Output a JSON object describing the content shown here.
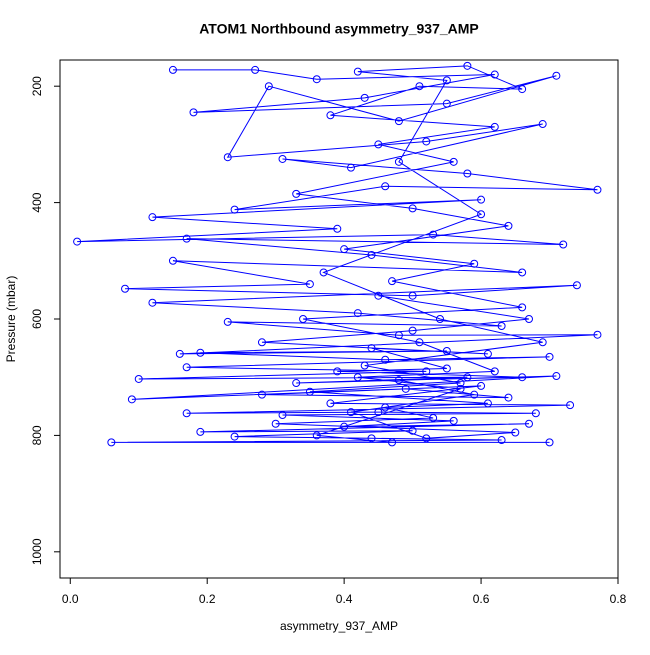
{
  "chart_data": {
    "type": "line",
    "title": "ATOM1 Northbound asymmetry_937_AMP",
    "x_label": "asymmetry_937_AMP",
    "y_label": "Pressure (mbar)",
    "color": "#0000ff",
    "markers": true,
    "xlim": [
      -0.015,
      0.8
    ],
    "ylim": [
      1045,
      155
    ],
    "xticks": [
      {
        "value": 0,
        "label": "0.0"
      },
      0.2,
      0.4,
      0.6,
      0.8
    ],
    "yticks": [
      200,
      400,
      600,
      800,
      1000
    ],
    "x": [
      0.15,
      0.27,
      0.36,
      0.62,
      0.43,
      0.18,
      0.55,
      0.71,
      0.48,
      0.29,
      0.23,
      0.52,
      0.69,
      0.41,
      0.31,
      0.58,
      0.77,
      0.46,
      0.24,
      0.6,
      0.12,
      0.39,
      0.01,
      0.53,
      0.72,
      0.17,
      0.44,
      0.66,
      0.15,
      0.35,
      0.08,
      0.5,
      0.74,
      0.12,
      0.42,
      0.63,
      0.23,
      0.48,
      0.77,
      0.16,
      0.55,
      0.19,
      0.46,
      0.7,
      0.17,
      0.52,
      0.1,
      0.58,
      0.33,
      0.71,
      0.09,
      0.49,
      0.64,
      0.28,
      0.6,
      0.38,
      0.73,
      0.17,
      0.45,
      0.68,
      0.31,
      0.56,
      0.4,
      0.67,
      0.19,
      0.5,
      0.24,
      0.44,
      0.63,
      0.06,
      0.7,
      0.47,
      0.36,
      0.57,
      0.42,
      0.62,
      0.51,
      0.34,
      0.66,
      0.47,
      0.59,
      0.4,
      0.64,
      0.5,
      0.33,
      0.56,
      0.45,
      0.62,
      0.38,
      0.51,
      0.66,
      0.58,
      0.42,
      0.55,
      0.48,
      0.6,
      0.37,
      0.54,
      0.69,
      0.43,
      0.57,
      0.35,
      0.61,
      0.46,
      0.53,
      0.3,
      0.65,
      0.52,
      0.41,
      0.59,
      0.48,
      0.66,
      0.39,
      0.55,
      0.44,
      0.61,
      0.28,
      0.5,
      0.67,
      0.45
    ],
    "values": [
      172,
      172,
      188,
      180,
      220,
      245,
      230,
      182,
      260,
      200,
      322,
      295,
      265,
      340,
      325,
      350,
      378,
      372,
      412,
      395,
      425,
      445,
      467,
      455,
      472,
      462,
      490,
      520,
      500,
      540,
      548,
      560,
      542,
      572,
      590,
      612,
      605,
      628,
      627,
      660,
      655,
      658,
      670,
      665,
      683,
      690,
      703,
      700,
      710,
      698,
      738,
      720,
      735,
      730,
      715,
      745,
      748,
      762,
      760,
      762,
      765,
      775,
      785,
      780,
      794,
      792,
      802,
      805,
      808,
      812,
      812,
      812,
      800,
      720,
      700,
      690,
      640,
      600,
      580,
      535,
      505,
      480,
      440,
      410,
      385,
      330,
      300,
      270,
      250,
      200,
      205,
      165,
      175,
      190,
      330,
      420,
      520,
      600,
      640,
      680,
      710,
      725,
      745,
      752,
      770,
      780,
      795,
      805,
      760,
      730,
      705,
      700,
      690,
      685,
      650,
      660,
      640,
      620,
      600,
      560
    ]
  }
}
